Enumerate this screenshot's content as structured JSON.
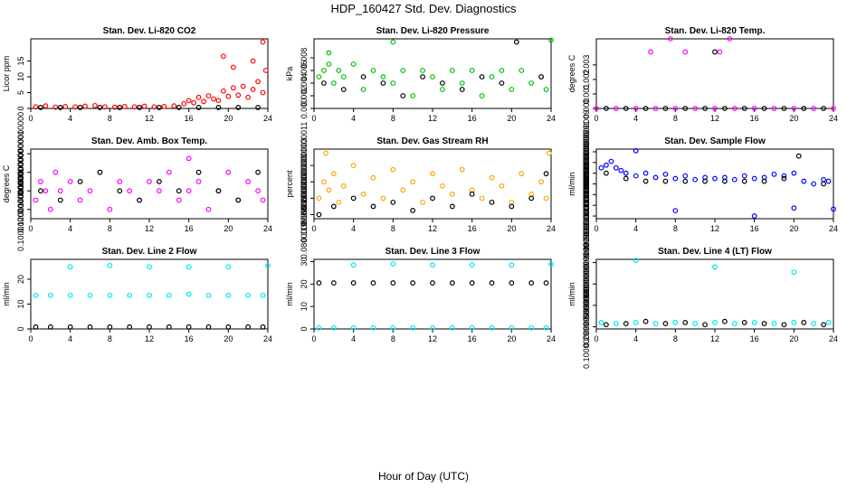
{
  "figure": {
    "title": "HDP_160427  Std. Dev. Diagnostics",
    "xlabel": "Hour of Day (UTC)"
  },
  "chart_data": [
    {
      "type": "scatter",
      "title": "Stan. Dev. Li-820 CO2",
      "ylabel": "Licor ppm",
      "xlim": [
        0,
        24
      ],
      "ylim": [
        0,
        22
      ],
      "xticks": [
        0,
        4,
        8,
        12,
        16,
        20,
        24
      ],
      "yticks": [
        0,
        5,
        10,
        15
      ],
      "series": [
        {
          "name": "primary",
          "color": "#ff0000",
          "x": [
            0.5,
            1.5,
            2.5,
            3.5,
            4.5,
            5.5,
            6.5,
            7.5,
            8.5,
            9.5,
            10.5,
            11.5,
            12.5,
            13.5,
            14.5,
            15.5,
            16.0,
            16.5,
            17.0,
            17.5,
            18.0,
            18.5,
            19.0,
            19.5,
            20.0,
            20.5,
            21.0,
            21.5,
            22.0,
            22.5,
            23.0,
            23.5,
            19.5,
            20.5,
            22.5,
            23.5,
            23.8
          ],
          "y": [
            0.5,
            0.8,
            0.4,
            0.6,
            0.5,
            0.7,
            0.9,
            0.5,
            0.4,
            0.6,
            0.5,
            0.7,
            0.5,
            0.6,
            0.8,
            1.5,
            2.5,
            1.8,
            3.5,
            2.2,
            4.0,
            3.0,
            2.5,
            5.5,
            3.8,
            6.5,
            4.2,
            7.0,
            3.5,
            6.0,
            8.5,
            5.0,
            16.5,
            13.0,
            15.0,
            21.0,
            12.0
          ]
        },
        {
          "name": "secondary",
          "color": "#000000",
          "x": [
            1,
            3,
            5,
            7,
            9,
            11,
            13,
            15,
            17,
            19,
            21,
            23
          ],
          "y": [
            0.3,
            0.3,
            0.3,
            0.3,
            0.3,
            0.3,
            0.3,
            0.3,
            0.3,
            0.3,
            0.3,
            0.3
          ]
        }
      ]
    },
    {
      "type": "scatter",
      "title": "Stan. Dev. Li-820 Pressure",
      "ylabel": "kPa",
      "xlim": [
        0,
        24
      ],
      "ylim": [
        0,
        0.011
      ],
      "xticks": [
        0,
        4,
        8,
        12,
        16,
        20,
        24
      ],
      "yticks": [
        0.0,
        0.002,
        0.004,
        0.006,
        0.008
      ],
      "series": [
        {
          "name": "primary",
          "color": "#00c000",
          "x": [
            0.5,
            1.0,
            1.5,
            2.0,
            2.5,
            3.0,
            4.0,
            5.0,
            6.0,
            7.0,
            8.0,
            9.0,
            10.0,
            11.0,
            12.0,
            13.0,
            14.0,
            15.0,
            16.0,
            17.0,
            18.0,
            19.0,
            20.0,
            21.0,
            22.0,
            23.0,
            23.5,
            8.0,
            24.0,
            1.5
          ],
          "y": [
            0.005,
            0.006,
            0.007,
            0.004,
            0.006,
            0.005,
            0.007,
            0.003,
            0.006,
            0.005,
            0.004,
            0.006,
            0.002,
            0.006,
            0.005,
            0.003,
            0.006,
            0.004,
            0.006,
            0.002,
            0.005,
            0.006,
            0.003,
            0.006,
            0.004,
            0.005,
            0.003,
            0.0105,
            0.0108,
            0.0088
          ]
        },
        {
          "name": "secondary",
          "color": "#000000",
          "x": [
            1,
            3,
            5,
            7,
            9,
            11,
            13,
            15,
            17,
            19,
            20.5,
            23
          ],
          "y": [
            0.004,
            0.003,
            0.005,
            0.004,
            0.002,
            0.005,
            0.004,
            0.003,
            0.005,
            0.004,
            0.0105,
            0.005
          ]
        }
      ]
    },
    {
      "type": "scatter",
      "title": "Stan. Dev. Li-820 Temp.",
      "ylabel": "degrees C",
      "xlim": [
        0,
        24
      ],
      "ylim": [
        0,
        0.0048
      ],
      "xticks": [
        0,
        4,
        8,
        12,
        16,
        20,
        24
      ],
      "yticks": [
        0.0,
        0.001,
        0.002,
        0.003
      ],
      "series": [
        {
          "name": "primary",
          "color": "#ff00ff",
          "x": [
            0,
            2,
            4,
            6,
            8,
            10,
            12,
            14,
            16,
            18,
            20,
            22,
            24,
            5.5,
            7.5,
            9,
            12.5,
            13.5
          ],
          "y": [
            0,
            0,
            0,
            0,
            0,
            0,
            0,
            0,
            0,
            0,
            0,
            0,
            0,
            0.0039,
            0.0048,
            0.0039,
            0.0039,
            0.0048
          ]
        },
        {
          "name": "secondary",
          "color": "#000000",
          "x": [
            1,
            3,
            5,
            7,
            9,
            11,
            12,
            13,
            15,
            17,
            19,
            21,
            23
          ],
          "y": [
            0,
            0,
            0,
            0,
            0,
            0,
            0.0039,
            0,
            0,
            0,
            0,
            0,
            0
          ]
        }
      ]
    },
    {
      "type": "scatter",
      "title": "Stan. Dev. Amb. Box Temp.",
      "ylabel": "degrees C",
      "xlim": [
        0,
        24
      ],
      "ylim": [
        0.09,
        0.165
      ],
      "xticks": [
        0,
        4,
        8,
        12,
        16,
        20,
        24
      ],
      "yticks": [
        0.1,
        0.12,
        0.14,
        0.16
      ],
      "series": [
        {
          "name": "primary",
          "color": "#ff00ff",
          "x": [
            0.5,
            1.0,
            1.5,
            2.0,
            2.5,
            3.0,
            4.0,
            5.0,
            6.0,
            7.0,
            8.0,
            9.0,
            10.0,
            11.0,
            12.0,
            13.0,
            14.0,
            15.0,
            16.0,
            17.0,
            18.0,
            19.0,
            20.0,
            21.0,
            22.0,
            23.0,
            23.5,
            16.0
          ],
          "y": [
            0.11,
            0.13,
            0.12,
            0.1,
            0.14,
            0.12,
            0.13,
            0.11,
            0.12,
            0.14,
            0.1,
            0.13,
            0.12,
            0.11,
            0.13,
            0.12,
            0.14,
            0.11,
            0.12,
            0.13,
            0.1,
            0.12,
            0.14,
            0.11,
            0.13,
            0.12,
            0.11,
            0.155
          ]
        },
        {
          "name": "secondary",
          "color": "#000000",
          "x": [
            1,
            3,
            5,
            7,
            9,
            11,
            13,
            15,
            17,
            19,
            21,
            23
          ],
          "y": [
            0.12,
            0.11,
            0.13,
            0.14,
            0.12,
            0.11,
            0.13,
            0.12,
            0.14,
            0.12,
            0.11,
            0.14
          ]
        }
      ]
    },
    {
      "type": "scatter",
      "title": "Stan. Dev. Gas Stream RH",
      "ylabel": "percent",
      "xlim": [
        0,
        24
      ],
      "ylim": [
        0.07,
        0.24
      ],
      "xticks": [
        0,
        4,
        8,
        12,
        16,
        20,
        24
      ],
      "yticks": [
        0.08,
        0.12,
        0.16,
        0.2
      ],
      "series": [
        {
          "name": "primary",
          "color": "#ffa500",
          "x": [
            0.5,
            1.0,
            1.5,
            2.0,
            2.5,
            3.0,
            4.0,
            5.0,
            6.0,
            7.0,
            8.0,
            9.0,
            10.0,
            11.0,
            12.0,
            13.0,
            14.0,
            15.0,
            16.0,
            17.0,
            18.0,
            19.0,
            20.0,
            21.0,
            22.0,
            23.0,
            23.5,
            1.2,
            23.8
          ],
          "y": [
            0.12,
            0.16,
            0.14,
            0.18,
            0.11,
            0.15,
            0.2,
            0.13,
            0.17,
            0.12,
            0.19,
            0.14,
            0.16,
            0.11,
            0.18,
            0.15,
            0.13,
            0.19,
            0.14,
            0.12,
            0.17,
            0.15,
            0.11,
            0.18,
            0.13,
            0.16,
            0.12,
            0.23,
            0.23
          ]
        },
        {
          "name": "secondary",
          "color": "#000000",
          "x": [
            0.5,
            2,
            4,
            6,
            8,
            10,
            12,
            14,
            16,
            18,
            20,
            22,
            23.5
          ],
          "y": [
            0.08,
            0.1,
            0.12,
            0.1,
            0.11,
            0.09,
            0.12,
            0.1,
            0.13,
            0.11,
            0.1,
            0.12,
            0.18
          ]
        }
      ]
    },
    {
      "type": "scatter",
      "title": "Stan. Dev. Sample Flow",
      "ylabel": "ml/min",
      "xlim": [
        0,
        24
      ],
      "ylim": [
        0.35,
        1.65
      ],
      "xticks": [
        0,
        4,
        8,
        12,
        16,
        20,
        24
      ],
      "yticks": [
        0.4,
        0.6,
        0.8,
        1.0,
        1.2,
        1.4,
        1.6
      ],
      "series": [
        {
          "name": "primary",
          "color": "#0000ff",
          "x": [
            0.5,
            1.0,
            1.5,
            2.0,
            2.5,
            3.0,
            4.0,
            5.0,
            6.0,
            7.0,
            8.0,
            9.0,
            10.0,
            11.0,
            12.0,
            13.0,
            14.0,
            15.0,
            16.0,
            17.0,
            18.0,
            19.0,
            20.0,
            21.0,
            22.0,
            23.0,
            23.5,
            4.0,
            8.0,
            16.0,
            20.0,
            24.0
          ],
          "y": [
            1.3,
            1.35,
            1.42,
            1.3,
            1.25,
            1.2,
            1.15,
            1.2,
            1.12,
            1.18,
            1.1,
            1.15,
            1.08,
            1.12,
            1.1,
            1.12,
            1.08,
            1.15,
            1.1,
            1.12,
            1.18,
            1.15,
            1.2,
            1.05,
            1.0,
            1.08,
            1.05,
            1.62,
            0.5,
            0.4,
            0.55,
            0.53
          ]
        },
        {
          "name": "secondary",
          "color": "#000000",
          "x": [
            1,
            3,
            5,
            7,
            9,
            11,
            13,
            15,
            17,
            19,
            20.5,
            23
          ],
          "y": [
            1.2,
            1.1,
            1.05,
            1.05,
            1.05,
            1.05,
            1.05,
            1.05,
            1.05,
            1.1,
            1.52,
            1.0
          ]
        }
      ]
    },
    {
      "type": "scatter",
      "title": "Stan. Dev. Line 2 Flow",
      "ylabel": "ml/min",
      "xlim": [
        0,
        24
      ],
      "ylim": [
        0,
        28
      ],
      "xticks": [
        0,
        4,
        8,
        12,
        16,
        20,
        24
      ],
      "yticks": [
        0,
        10,
        20
      ],
      "series": [
        {
          "name": "primary",
          "color": "#00e5ee",
          "x": [
            0.5,
            2,
            4,
            6,
            8,
            10,
            12,
            14,
            16,
            18,
            20,
            22,
            23.5,
            4,
            8,
            12,
            16,
            20,
            24
          ],
          "y": [
            13.5,
            13.5,
            13.5,
            13.5,
            13.5,
            13.5,
            13.5,
            13.5,
            14.0,
            13.5,
            13.5,
            13.5,
            13.5,
            25.0,
            25.5,
            25.0,
            25.0,
            25.0,
            25.5
          ]
        },
        {
          "name": "secondary",
          "color": "#000000",
          "x": [
            0.5,
            2,
            4,
            6,
            8,
            10,
            12,
            14,
            16,
            18,
            20,
            22,
            23.5
          ],
          "y": [
            0.8,
            0.8,
            0.8,
            0.8,
            0.8,
            0.8,
            0.8,
            0.8,
            0.8,
            0.8,
            0.8,
            0.8,
            0.8
          ]
        }
      ]
    },
    {
      "type": "scatter",
      "title": "Stan. Dev. Line 3 Flow",
      "ylabel": "ml/min",
      "xlim": [
        0,
        24
      ],
      "ylim": [
        0,
        31
      ],
      "xticks": [
        0,
        4,
        8,
        12,
        16,
        20,
        24
      ],
      "yticks": [
        0,
        10,
        20,
        30
      ],
      "series": [
        {
          "name": "primary",
          "color": "#00e5ee",
          "x": [
            0.5,
            2,
            4,
            6,
            8,
            10,
            12,
            14,
            16,
            18,
            20,
            22,
            23.5,
            4,
            8,
            12,
            16,
            20,
            24
          ],
          "y": [
            0.5,
            0.5,
            0.5,
            0.5,
            0.5,
            0.5,
            0.5,
            0.5,
            0.5,
            0.5,
            0.5,
            0.5,
            0.5,
            28.5,
            29.0,
            28.5,
            28.5,
            28.5,
            28.8
          ]
        },
        {
          "name": "secondary",
          "color": "#000000",
          "x": [
            0.5,
            2,
            4,
            6,
            8,
            10,
            12,
            14,
            16,
            18,
            20,
            22,
            23.5
          ],
          "y": [
            20.5,
            20.5,
            20.5,
            20.5,
            20.5,
            20.5,
            20.5,
            20.5,
            20.5,
            20.5,
            20.5,
            20.5,
            20.5
          ]
        }
      ]
    },
    {
      "type": "scatter",
      "title": "Stan. Dev. Line 4 (LT) Flow",
      "ylabel": "ml/min",
      "xlim": [
        0,
        24
      ],
      "ylim": [
        0.08,
        0.73
      ],
      "xticks": [
        0,
        4,
        8,
        12,
        16,
        20,
        24
      ],
      "yticks": [
        0.1,
        0.3,
        0.5,
        0.7
      ],
      "series": [
        {
          "name": "primary",
          "color": "#00e5ee",
          "x": [
            0.5,
            2,
            4,
            6,
            8,
            10,
            12,
            14,
            16,
            18,
            20,
            22,
            23.5,
            4,
            12,
            20
          ],
          "y": [
            0.14,
            0.13,
            0.14,
            0.13,
            0.14,
            0.13,
            0.14,
            0.13,
            0.14,
            0.13,
            0.14,
            0.13,
            0.14,
            0.72,
            0.66,
            0.61
          ]
        },
        {
          "name": "secondary",
          "color": "#000000",
          "x": [
            1,
            3,
            5,
            7,
            9,
            11,
            13,
            15,
            17,
            19,
            21,
            23
          ],
          "y": [
            0.12,
            0.13,
            0.15,
            0.13,
            0.14,
            0.12,
            0.15,
            0.14,
            0.13,
            0.12,
            0.14,
            0.12
          ]
        }
      ]
    }
  ]
}
